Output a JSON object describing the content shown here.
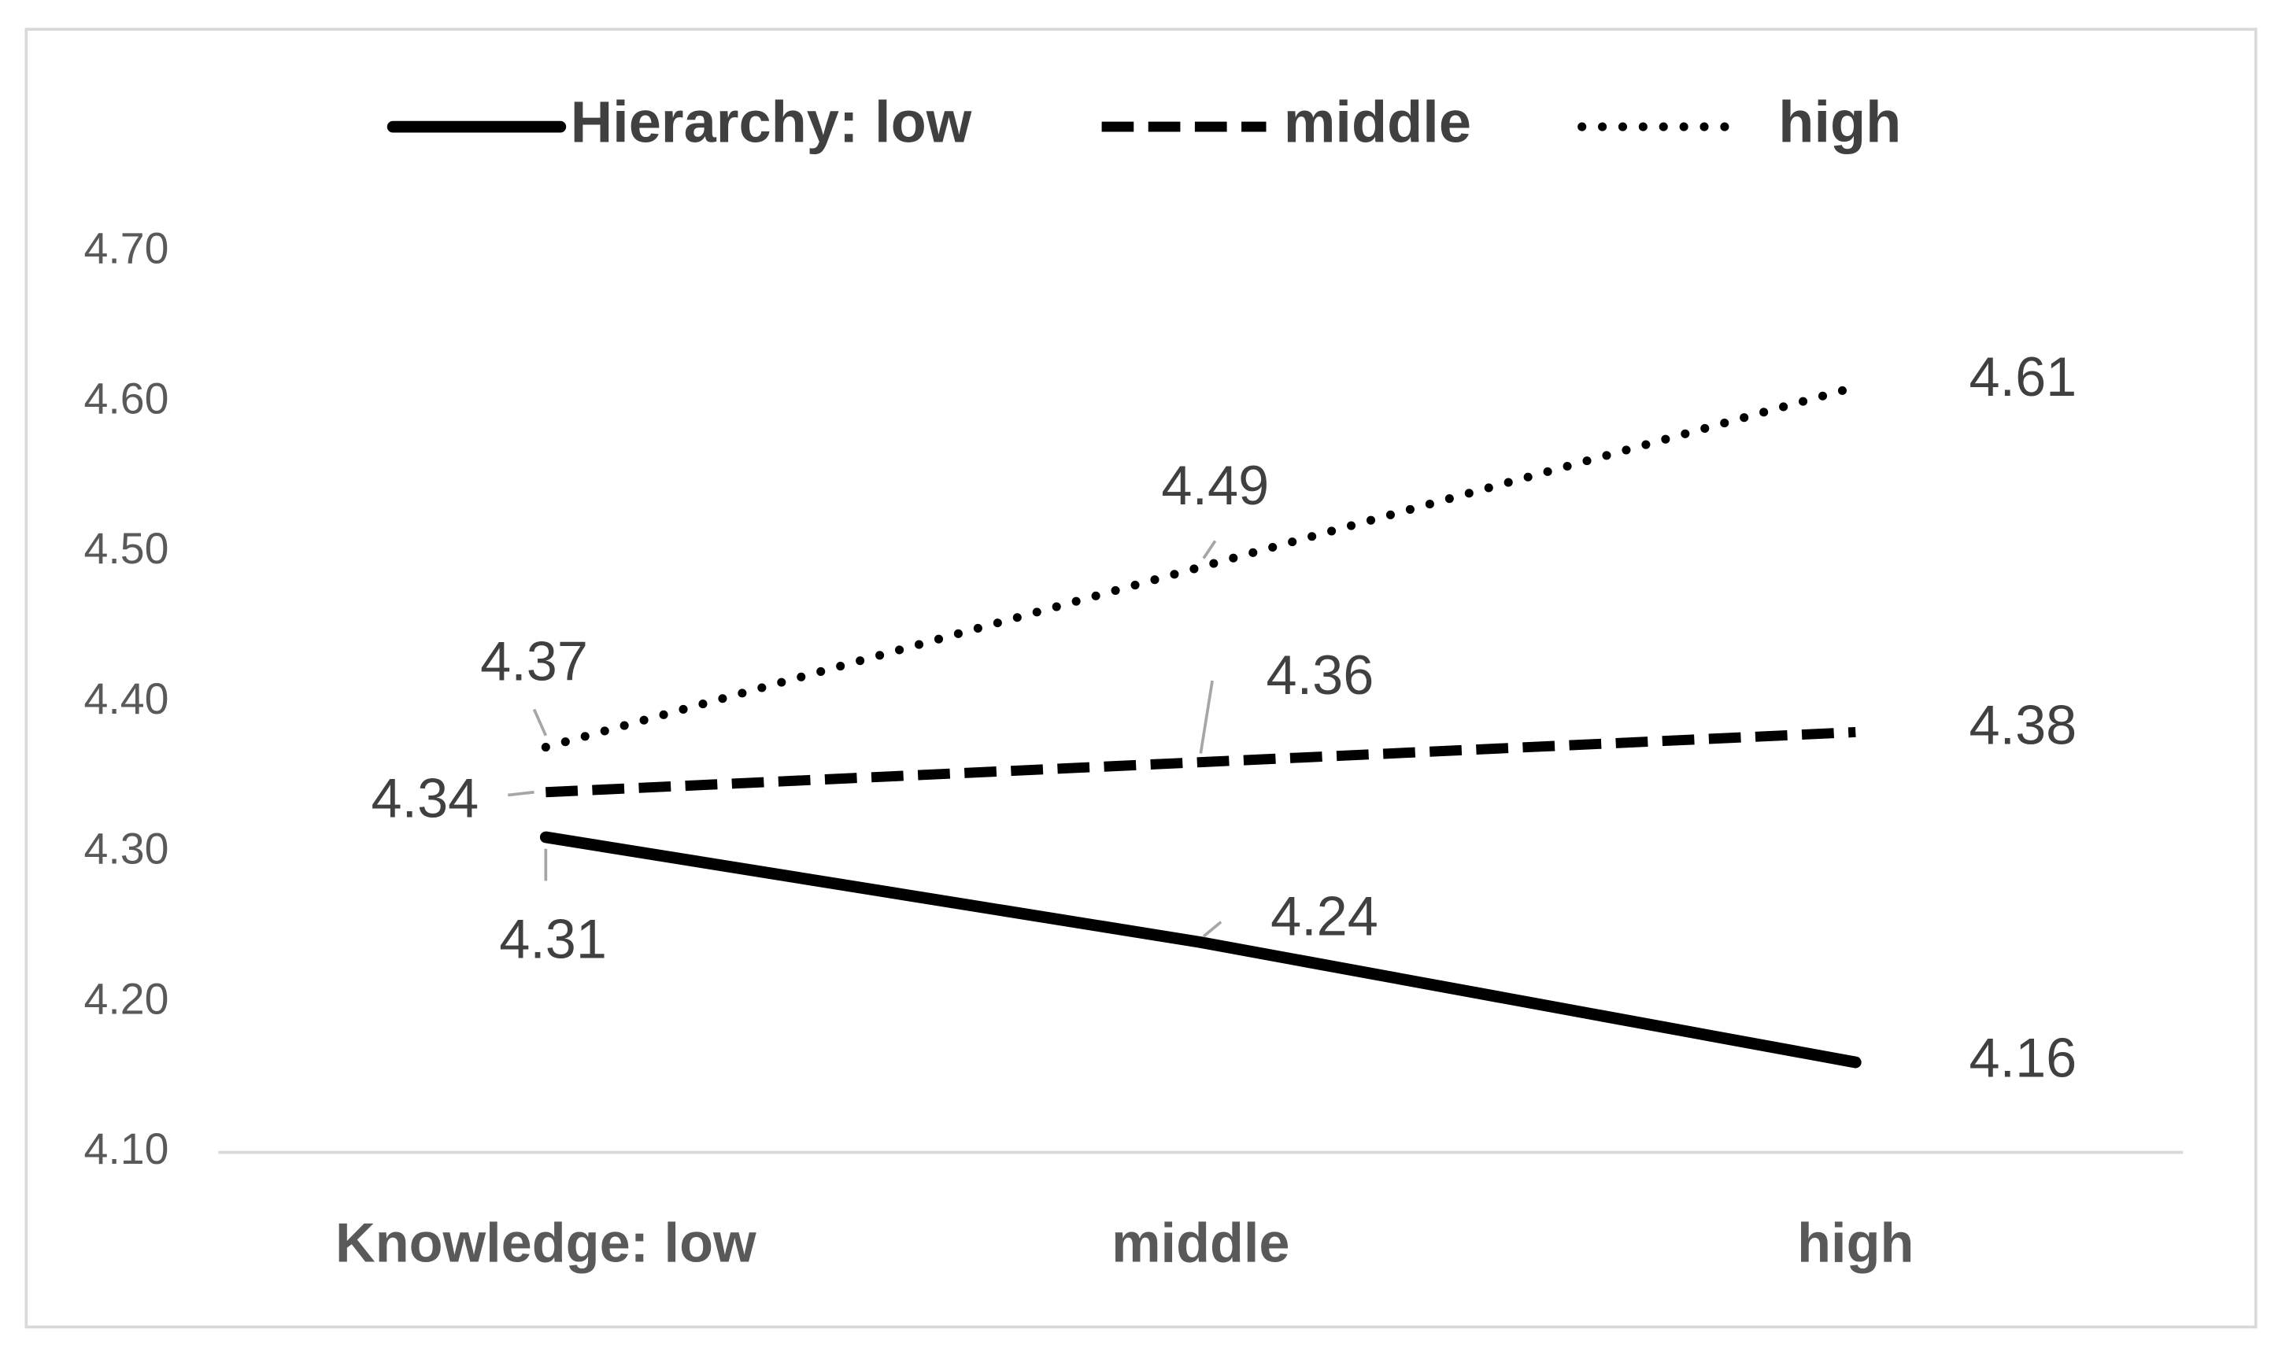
{
  "chart_data": {
    "type": "line",
    "categories": [
      "Knowledge: low",
      "middle",
      "high"
    ],
    "series": [
      {
        "name": "Hierarchy: low",
        "color": "#000000",
        "style": "solid",
        "values": [
          4.31,
          4.24,
          4.16
        ]
      },
      {
        "name": "middle",
        "color": "#000000",
        "style": "dashed",
        "values": [
          4.34,
          4.36,
          4.38
        ]
      },
      {
        "name": "high",
        "color": "#000000",
        "style": "dotted",
        "values": [
          4.37,
          4.49,
          4.61
        ]
      }
    ],
    "ylim": [
      4.1,
      4.7
    ],
    "yticks": [
      {
        "value": 4.1,
        "label": "4.10"
      },
      {
        "value": 4.2,
        "label": "4.20"
      },
      {
        "value": 4.3,
        "label": "4.30"
      },
      {
        "value": 4.4,
        "label": "4.40"
      },
      {
        "value": 4.5,
        "label": "4.50"
      },
      {
        "value": 4.6,
        "label": "4.60"
      },
      {
        "value": 4.7,
        "label": "4.70"
      }
    ],
    "grid": false,
    "legend": "top"
  }
}
